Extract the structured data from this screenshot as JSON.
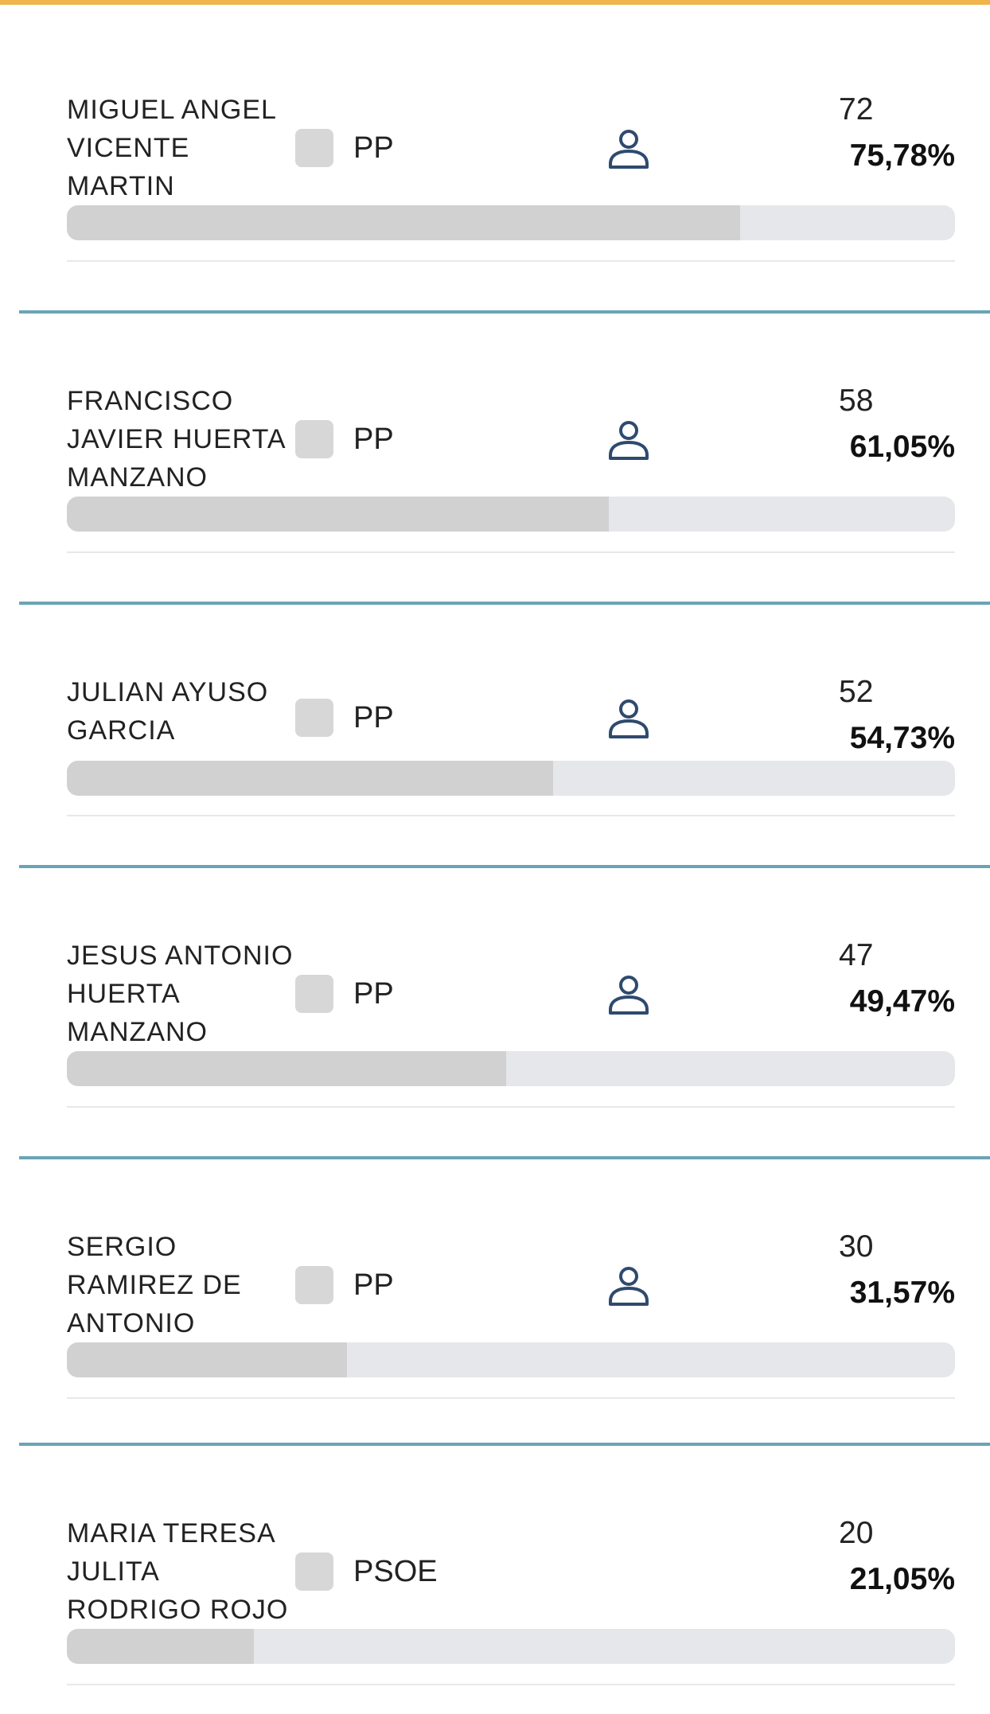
{
  "candidates": [
    {
      "name_lines": [
        "MIGUEL ANGEL",
        "VICENTE",
        "MARTIN"
      ],
      "party": "PP",
      "votes": "72",
      "percent": "75,78%",
      "share": 75.78
    },
    {
      "name_lines": [
        "FRANCISCO",
        "JAVIER HUERTA",
        "MANZANO"
      ],
      "party": "PP",
      "votes": "58",
      "percent": "61,05%",
      "share": 61.05
    },
    {
      "name_lines": [
        "JULIAN AYUSO",
        "GARCIA"
      ],
      "party": "PP",
      "votes": "52",
      "percent": "54,73%",
      "share": 54.73
    },
    {
      "name_lines": [
        "JESUS ANTONIO",
        "HUERTA",
        "MANZANO"
      ],
      "party": "PP",
      "votes": "47",
      "percent": "49,47%",
      "share": 49.47
    },
    {
      "name_lines": [
        "SERGIO",
        "RAMIREZ DE",
        "ANTONIO"
      ],
      "party": "PP",
      "votes": "30",
      "percent": "31,57%",
      "share": 31.57
    },
    {
      "name_lines": [
        "MARIA TERESA",
        "JULITA",
        "RODRIGO ROJO"
      ],
      "party": "PSOE",
      "votes": "20",
      "percent": "21,05%",
      "share": 21.05
    }
  ],
  "colors": {
    "top_accent": "#efb54a",
    "section_rule": "#6aa4b4",
    "bar_track": "#e6e7ea",
    "bar_fill": "#d1d1d1",
    "party_swatch": "#d7d7d7",
    "person_icon": "#2f4a6e"
  },
  "icons": {
    "candidate_avatar": "person-outline-icon"
  }
}
